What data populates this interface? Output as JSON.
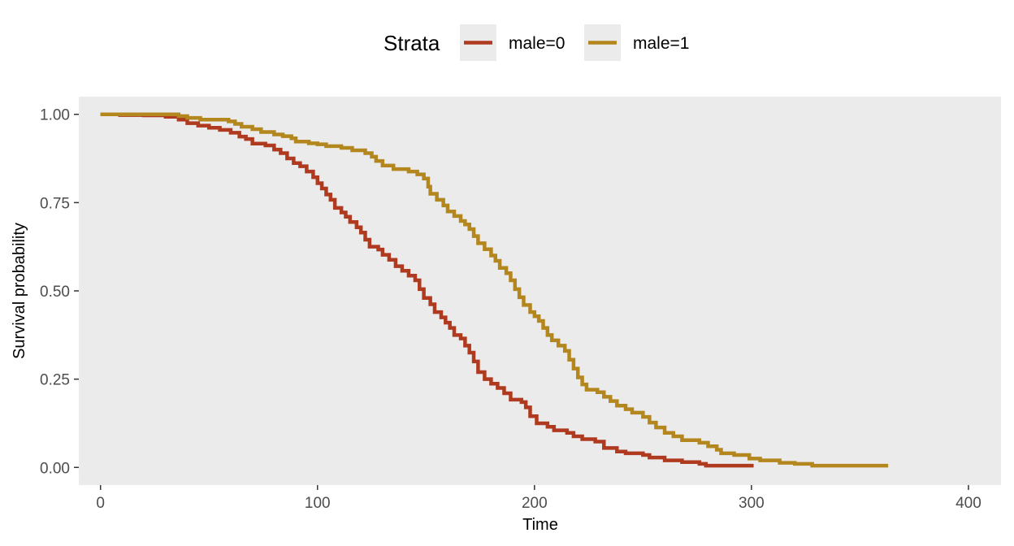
{
  "chart_data": {
    "type": "line",
    "step": true,
    "xlabel": "Time",
    "ylabel": "Survival probability",
    "xlim": [
      -10,
      415
    ],
    "ylim": [
      -0.05,
      1.05
    ],
    "x_ticks": [
      0,
      100,
      200,
      300,
      400
    ],
    "y_ticks": [
      0,
      0.25,
      0.5,
      0.75,
      1
    ],
    "x_tick_labels": [
      "0",
      "100",
      "200",
      "300",
      "400"
    ],
    "y_tick_labels": [
      "0.00",
      "0.25",
      "0.50",
      "0.75",
      "1.00"
    ],
    "grid": false,
    "panel_background": "#ebebeb",
    "legend": {
      "title": "Strata",
      "position": "top"
    },
    "series": [
      {
        "name": "male=0",
        "color": "#b03a1f",
        "points": [
          [
            0,
            1.0
          ],
          [
            9,
            0.998
          ],
          [
            20,
            0.997
          ],
          [
            30,
            0.993
          ],
          [
            36,
            0.985
          ],
          [
            40,
            0.975
          ],
          [
            45,
            0.968
          ],
          [
            50,
            0.962
          ],
          [
            55,
            0.956
          ],
          [
            60,
            0.948
          ],
          [
            64,
            0.937
          ],
          [
            67,
            0.93
          ],
          [
            70,
            0.917
          ],
          [
            76,
            0.912
          ],
          [
            80,
            0.9
          ],
          [
            83,
            0.89
          ],
          [
            86,
            0.875
          ],
          [
            89,
            0.862
          ],
          [
            92,
            0.853
          ],
          [
            95,
            0.838
          ],
          [
            98,
            0.822
          ],
          [
            100,
            0.805
          ],
          [
            102,
            0.79
          ],
          [
            104,
            0.773
          ],
          [
            106,
            0.758
          ],
          [
            108,
            0.735
          ],
          [
            111,
            0.722
          ],
          [
            113,
            0.71
          ],
          [
            115,
            0.695
          ],
          [
            118,
            0.68
          ],
          [
            120,
            0.665
          ],
          [
            122,
            0.645
          ],
          [
            124,
            0.625
          ],
          [
            128,
            0.617
          ],
          [
            130,
            0.602
          ],
          [
            133,
            0.588
          ],
          [
            136,
            0.57
          ],
          [
            139,
            0.557
          ],
          [
            142,
            0.543
          ],
          [
            145,
            0.53
          ],
          [
            147,
            0.505
          ],
          [
            149,
            0.48
          ],
          [
            152,
            0.462
          ],
          [
            154,
            0.44
          ],
          [
            157,
            0.425
          ],
          [
            159,
            0.41
          ],
          [
            161,
            0.395
          ],
          [
            163,
            0.375
          ],
          [
            166,
            0.365
          ],
          [
            168,
            0.345
          ],
          [
            170,
            0.325
          ],
          [
            172,
            0.3
          ],
          [
            174,
            0.27
          ],
          [
            177,
            0.25
          ],
          [
            180,
            0.237
          ],
          [
            183,
            0.225
          ],
          [
            186,
            0.21
          ],
          [
            189,
            0.192
          ],
          [
            194,
            0.185
          ],
          [
            196,
            0.17
          ],
          [
            198,
            0.145
          ],
          [
            201,
            0.125
          ],
          [
            206,
            0.115
          ],
          [
            209,
            0.105
          ],
          [
            215,
            0.098
          ],
          [
            218,
            0.088
          ],
          [
            222,
            0.08
          ],
          [
            228,
            0.073
          ],
          [
            232,
            0.055
          ],
          [
            238,
            0.045
          ],
          [
            242,
            0.04
          ],
          [
            250,
            0.035
          ],
          [
            253,
            0.028
          ],
          [
            260,
            0.02
          ],
          [
            268,
            0.015
          ],
          [
            276,
            0.01
          ],
          [
            279,
            0.005
          ],
          [
            301,
            0.005
          ]
        ]
      },
      {
        "name": "male=1",
        "color": "#b3861e",
        "points": [
          [
            0,
            1.0
          ],
          [
            36,
            0.995
          ],
          [
            40,
            0.99
          ],
          [
            46,
            0.985
          ],
          [
            59,
            0.98
          ],
          [
            62,
            0.973
          ],
          [
            65,
            0.965
          ],
          [
            70,
            0.958
          ],
          [
            74,
            0.95
          ],
          [
            80,
            0.943
          ],
          [
            84,
            0.938
          ],
          [
            88,
            0.932
          ],
          [
            90,
            0.923
          ],
          [
            96,
            0.918
          ],
          [
            100,
            0.915
          ],
          [
            104,
            0.91
          ],
          [
            111,
            0.905
          ],
          [
            116,
            0.898
          ],
          [
            122,
            0.89
          ],
          [
            125,
            0.88
          ],
          [
            127,
            0.868
          ],
          [
            130,
            0.855
          ],
          [
            135,
            0.845
          ],
          [
            142,
            0.838
          ],
          [
            146,
            0.83
          ],
          [
            149,
            0.818
          ],
          [
            151,
            0.795
          ],
          [
            152,
            0.775
          ],
          [
            155,
            0.758
          ],
          [
            158,
            0.742
          ],
          [
            160,
            0.725
          ],
          [
            163,
            0.712
          ],
          [
            166,
            0.698
          ],
          [
            168,
            0.688
          ],
          [
            170,
            0.675
          ],
          [
            172,
            0.655
          ],
          [
            174,
            0.635
          ],
          [
            177,
            0.618
          ],
          [
            180,
            0.6
          ],
          [
            182,
            0.585
          ],
          [
            184,
            0.565
          ],
          [
            187,
            0.55
          ],
          [
            189,
            0.53
          ],
          [
            191,
            0.505
          ],
          [
            193,
            0.482
          ],
          [
            195,
            0.46
          ],
          [
            198,
            0.44
          ],
          [
            200,
            0.428
          ],
          [
            202,
            0.415
          ],
          [
            204,
            0.395
          ],
          [
            206,
            0.375
          ],
          [
            208,
            0.36
          ],
          [
            211,
            0.345
          ],
          [
            214,
            0.33
          ],
          [
            216,
            0.305
          ],
          [
            218,
            0.28
          ],
          [
            220,
            0.255
          ],
          [
            222,
            0.235
          ],
          [
            224,
            0.22
          ],
          [
            229,
            0.213
          ],
          [
            232,
            0.2
          ],
          [
            235,
            0.188
          ],
          [
            238,
            0.175
          ],
          [
            242,
            0.165
          ],
          [
            245,
            0.155
          ],
          [
            250,
            0.143
          ],
          [
            253,
            0.127
          ],
          [
            256,
            0.113
          ],
          [
            260,
            0.098
          ],
          [
            264,
            0.088
          ],
          [
            268,
            0.077
          ],
          [
            276,
            0.07
          ],
          [
            280,
            0.06
          ],
          [
            284,
            0.05
          ],
          [
            286,
            0.04
          ],
          [
            292,
            0.035
          ],
          [
            299,
            0.025
          ],
          [
            304,
            0.02
          ],
          [
            313,
            0.013
          ],
          [
            320,
            0.01
          ],
          [
            328,
            0.005
          ],
          [
            363,
            0.005
          ]
        ]
      }
    ]
  }
}
